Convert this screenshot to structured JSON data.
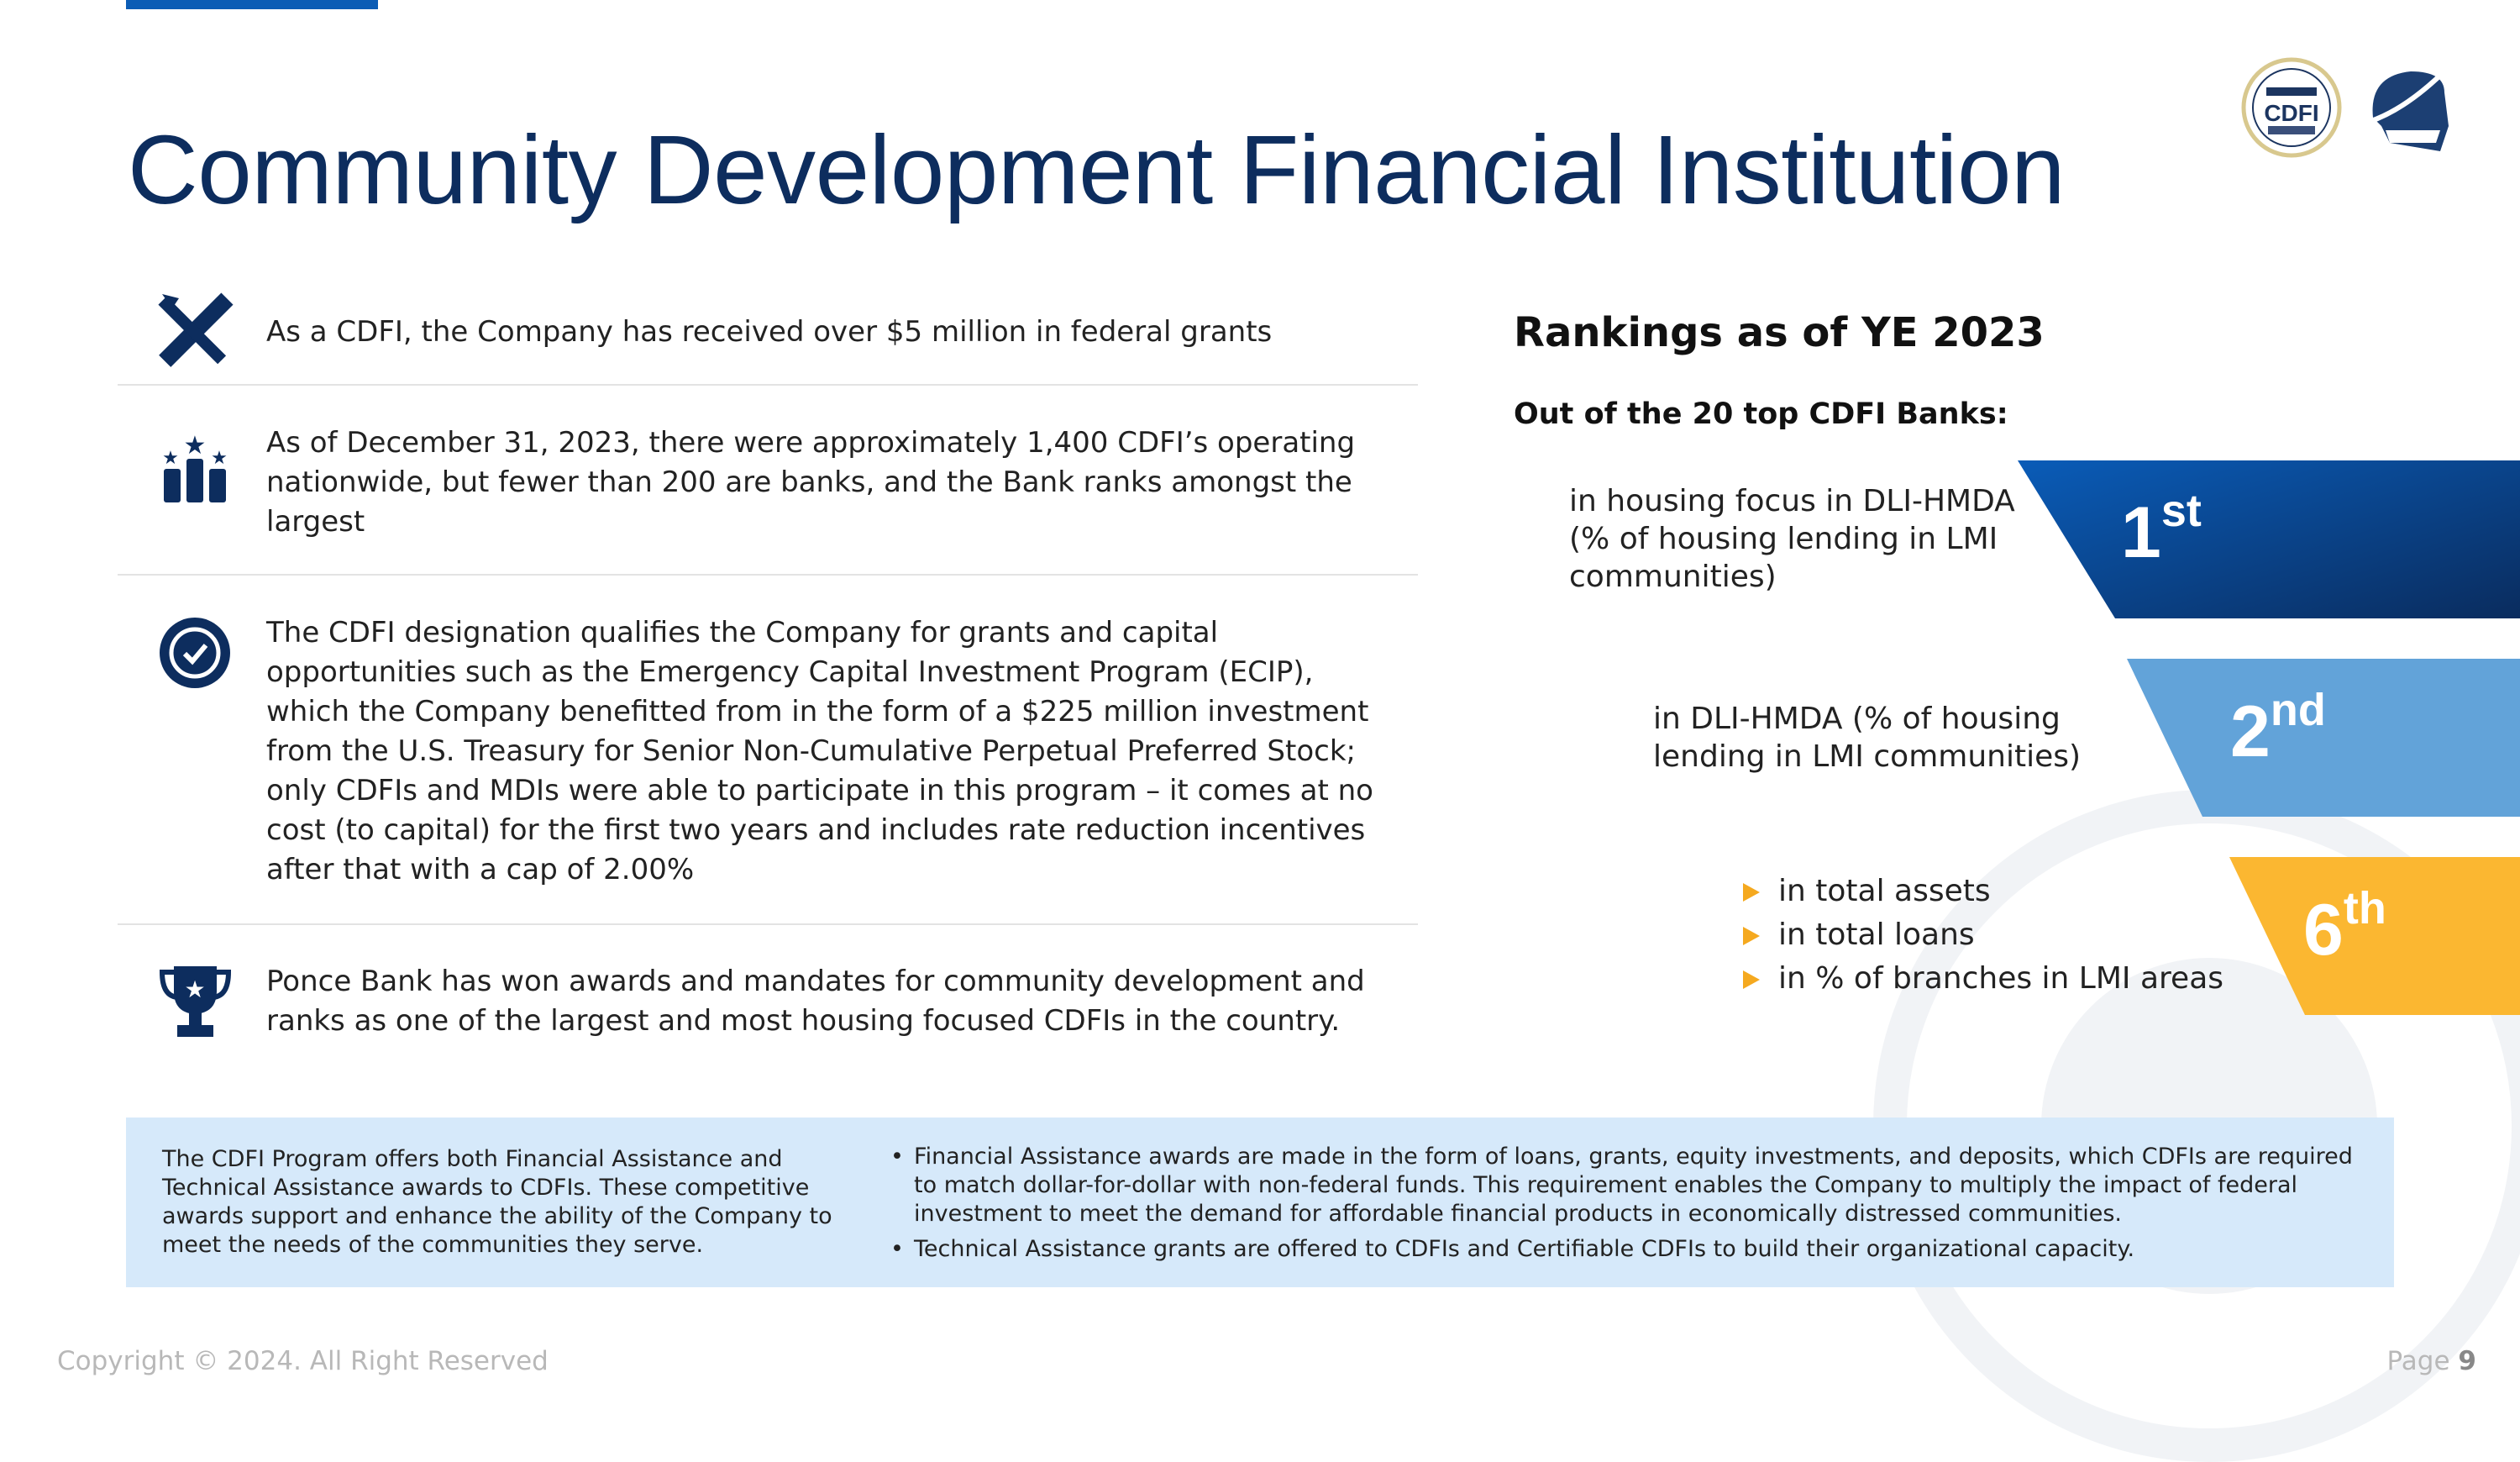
{
  "title": "Community Development Financial Institution",
  "logos": {
    "cdfi": "CERTIFIED CDFI U.S. Department of the Treasury",
    "bank": "Ponce Bank conquistador logo"
  },
  "rows": [
    {
      "icon": "tools-icon",
      "text": "As a CDFI, the Company has received over $5 million in federal grants"
    },
    {
      "icon": "podium-stars-icon",
      "text": "As of December 31, 2023, there were approximately 1,400 CDFI’s operating nationwide, but fewer than 200 are banks, and the Bank ranks amongst the largest"
    },
    {
      "icon": "verified-badge-icon",
      "text": "The CDFI designation qualifies the Company for grants and capital opportunities such as the Emergency Capital Investment Program (ECIP), which the Company benefitted from in the form of a $225 million investment from the U.S. Treasury for Senior Non-Cumulative Perpetual Preferred Stock; only CDFIs and MDIs were able to participate in this program – it comes at no cost (to capital) for the first two years and includes rate reduction incentives after that with a cap of 2.00%"
    },
    {
      "icon": "trophy-icon",
      "text": "Ponce Bank has won awards and mandates for community development and ranks as one of the largest and most housing focused CDFIs in the country."
    }
  ],
  "rankings": {
    "title": "Rankings as of YE 2023",
    "subtitle": "Out of the 20 top CDFI Banks:",
    "items": [
      {
        "rank": "1",
        "suffix": "st",
        "label": "in housing focus in DLI-HMDA (% of housing lending in LMI communities)",
        "color": "#0a4fa3"
      },
      {
        "rank": "2",
        "suffix": "nd",
        "label": "in DLI-HMDA (% of housing lending in LMI communities)",
        "color": "#62a3d9"
      },
      {
        "rank": "6",
        "suffix": "th",
        "bullets": [
          "in total assets",
          "in total loans",
          "in % of branches in LMI areas"
        ],
        "color": "#fbb731"
      }
    ]
  },
  "info": {
    "left": "The CDFI Program offers both Financial Assistance and Technical Assistance awards to CDFIs. These competitive awards support and enhance the ability of the Company to meet the needs of the communities they serve.",
    "bullets": [
      "Financial Assistance awards are made in the form of loans, grants, equity investments, and deposits, which CDFIs are required to match dollar-for-dollar with non-federal funds. This requirement enables the Company to multiply the impact of federal investment to meet the demand for affordable financial products in economically distressed communities.",
      "Technical Assistance grants are offered to CDFIs and Certifiable CDFIs to build their organizational capacity."
    ]
  },
  "footer": {
    "copyright": "Copyright © 2024. All Right Reserved",
    "page_label": "Page",
    "page_number": "9"
  }
}
